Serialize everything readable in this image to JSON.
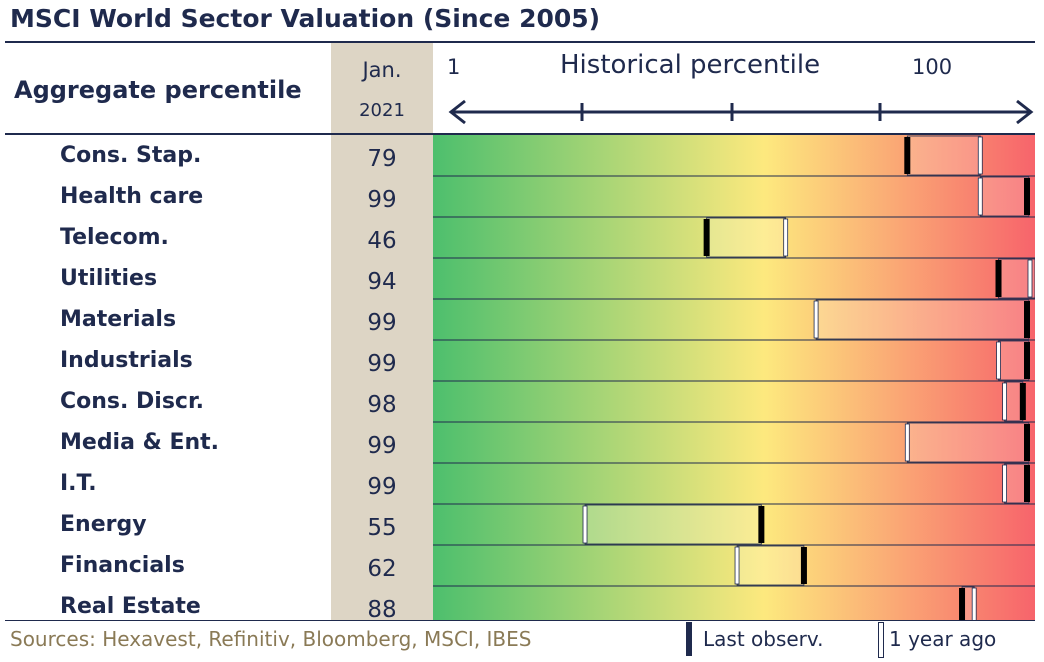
{
  "title": "MSCI World Sector Valuation (Since 2005)",
  "header": {
    "aggregate_label": "Aggregate percentile",
    "month_label": "Jan.",
    "year_label": "2021",
    "historical_label": "Historical percentile",
    "range_min": "1",
    "range_max": "100"
  },
  "chart_data": {
    "type": "table",
    "title": "MSCI World Sector Valuation (Since 2005)",
    "xlabel": "Historical percentile",
    "xlim": [
      1,
      100
    ],
    "color_scale": [
      "#4dbf6d",
      "#fde97e",
      "#f7646b"
    ],
    "categories": [
      "Cons. Stap.",
      "Health care",
      "Telecom.",
      "Utilities",
      "Materials",
      "Industrials",
      "Cons. Discr.",
      "Media & Ent.",
      "I.T.",
      "Energy",
      "Financials",
      "Real Estate"
    ],
    "series": [
      {
        "name": "Last observ.",
        "values": [
          79,
          99,
          46,
          94,
          99,
          99,
          98,
          99,
          99,
          55,
          62,
          88
        ]
      },
      {
        "name": "1 year ago",
        "values": [
          91,
          91,
          59,
          100,
          64,
          94,
          95,
          79,
          95,
          26,
          51,
          90
        ]
      }
    ],
    "percentile_labels": [
      "79",
      "99",
      "46",
      "94",
      "99",
      "99",
      "98",
      "99",
      "99",
      "55",
      "62",
      "88"
    ]
  },
  "footer": {
    "source": "Sources: Hexavest, Refinitiv, Bloomberg, MSCI, IBES",
    "legend_last": "Last observ.",
    "legend_year_ago": "1 year ago"
  },
  "colors": {
    "text": "#1f2a4d",
    "column_bg": "#ddd5c5",
    "source_text": "#8a7a56"
  }
}
